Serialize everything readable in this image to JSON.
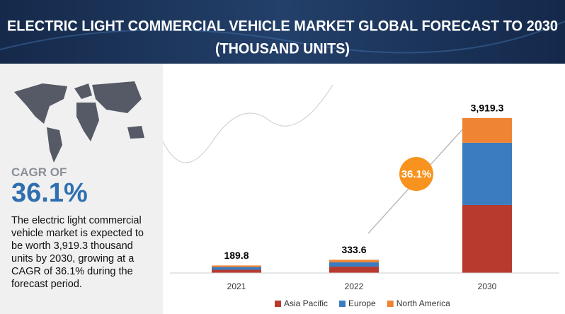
{
  "chart_data": {
    "type": "stacked_bar",
    "title": "ELECTRIC LIGHT COMMERCIAL VEHICLE MARKET GLOBAL FORECAST TO 2030",
    "subtitle": "(THOUSAND UNITS)",
    "categories": [
      "2021",
      "2022",
      "2030"
    ],
    "series": [
      {
        "name": "Asia Pacific",
        "color": "#b83a2f",
        "values": [
          80,
          160,
          1718
        ]
      },
      {
        "name": "Europe",
        "color": "#3b7bbf",
        "values": [
          70,
          110,
          1575
        ]
      },
      {
        "name": "North America",
        "color": "#ee8434",
        "values": [
          39.8,
          63.6,
          626.3
        ]
      }
    ],
    "totals": [
      189.8,
      333.6,
      3919.3
    ],
    "total_labels": [
      "189.8",
      "333.6",
      "3,919.3"
    ],
    "ylim": [
      0,
      4400
    ],
    "annotation": "36.1%",
    "cagr_heading": "CAGR OF",
    "cagr_value": "36.1%",
    "description": "The electric light commercial vehicle market is expected to be worth 3,919.3 thousand units by 2030, growing at a CAGR of 36.1% during the forecast period."
  }
}
